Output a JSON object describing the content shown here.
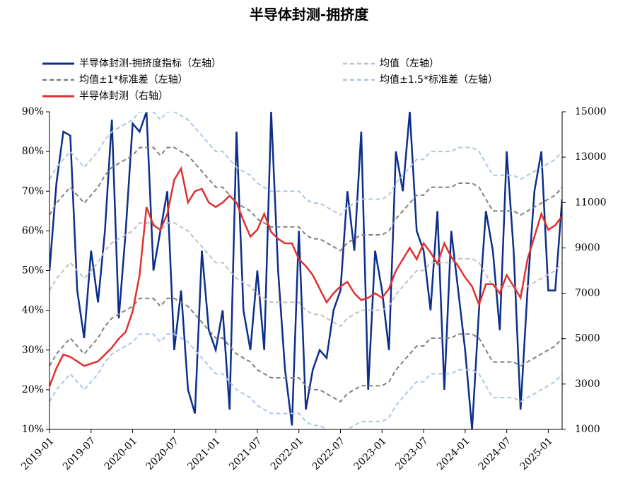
{
  "chart_data": {
    "type": "line",
    "title": "半导体封测-拥挤度",
    "x": [
      "2019-01",
      "2019-02",
      "2019-03",
      "2019-04",
      "2019-05",
      "2019-06",
      "2019-07",
      "2019-08",
      "2019-09",
      "2019-10",
      "2019-11",
      "2019-12",
      "2020-01",
      "2020-02",
      "2020-03",
      "2020-04",
      "2020-05",
      "2020-06",
      "2020-07",
      "2020-08",
      "2020-09",
      "2020-10",
      "2020-11",
      "2020-12",
      "2021-01",
      "2021-02",
      "2021-03",
      "2021-04",
      "2021-05",
      "2021-06",
      "2021-07",
      "2021-08",
      "2021-09",
      "2021-10",
      "2021-11",
      "2021-12",
      "2022-01",
      "2022-02",
      "2022-03",
      "2022-04",
      "2022-05",
      "2022-06",
      "2022-07",
      "2022-08",
      "2022-09",
      "2022-10",
      "2022-11",
      "2022-12",
      "2023-01",
      "2023-02",
      "2023-03",
      "2023-04",
      "2023-05",
      "2023-06",
      "2023-07",
      "2023-08",
      "2023-09",
      "2023-10",
      "2023-11",
      "2023-12",
      "2024-01",
      "2024-02",
      "2024-03",
      "2024-04",
      "2024-05",
      "2024-06",
      "2024-07",
      "2024-08",
      "2024-09",
      "2024-10",
      "2024-11",
      "2024-12",
      "2025-01",
      "2025-02",
      "2025-03"
    ],
    "xticks": [
      "2019-01",
      "2019-07",
      "2020-01",
      "2020-07",
      "2021-01",
      "2021-07",
      "2022-01",
      "2022-07",
      "2023-01",
      "2023-07",
      "2024-01",
      "2024-07",
      "2025-01"
    ],
    "ylim": [
      10,
      90
    ],
    "yticks": [
      {
        "value": 10,
        "label": "10%"
      },
      {
        "value": 20,
        "label": "20%"
      },
      {
        "value": 30,
        "label": "30%"
      },
      {
        "value": 40,
        "label": "40%"
      },
      {
        "value": 50,
        "label": "50%"
      },
      {
        "value": 60,
        "label": "60%"
      },
      {
        "value": 70,
        "label": "70%"
      },
      {
        "value": 80,
        "label": "80%"
      },
      {
        "value": 90,
        "label": "90%"
      }
    ],
    "y2lim": [
      1000,
      15000
    ],
    "y2ticks": [
      1000,
      3000,
      5000,
      7000,
      9000,
      11000,
      13000,
      15000
    ],
    "series": [
      {
        "name": "半导体封测-拥挤度指标（左轴）",
        "color": "#0d2f8a",
        "dash": false,
        "values": [
          50,
          72,
          85,
          84,
          45,
          33,
          55,
          42,
          60,
          88,
          38,
          60,
          87,
          85,
          90,
          50,
          60,
          70,
          30,
          45,
          20,
          14,
          55,
          35,
          30,
          40,
          15,
          85,
          40,
          30,
          50,
          30,
          90,
          50,
          25,
          11,
          60,
          15,
          25,
          30,
          28,
          40,
          45,
          70,
          55,
          85,
          20,
          55,
          45,
          30,
          80,
          70,
          90,
          60,
          55,
          40,
          65,
          20,
          60,
          45,
          30,
          10,
          40,
          65,
          55,
          35,
          80,
          55,
          15,
          45,
          70,
          80,
          45,
          45,
          68
        ]
      },
      {
        "name": "均值（左轴）",
        "color": "#c0c0c0",
        "dash": true,
        "values": [
          45,
          48,
          50,
          52,
          50,
          48,
          50,
          52,
          55,
          57,
          58,
          59,
          60,
          62,
          62,
          62,
          60,
          62,
          62,
          61,
          60,
          58,
          56,
          54,
          52,
          52,
          50,
          48,
          47,
          46,
          44,
          43,
          42,
          42,
          42,
          42,
          42,
          40,
          39,
          39,
          38,
          37,
          36,
          38,
          39,
          40,
          40,
          40,
          40,
          41,
          44,
          46,
          48,
          50,
          50,
          52,
          52,
          52,
          52,
          53,
          53,
          53,
          52,
          49,
          46,
          46,
          46,
          46,
          45,
          46,
          47,
          48,
          49,
          50,
          52
        ]
      },
      {
        "name": "均值±1*标准差（左轴）",
        "color": "#808080",
        "dash": true,
        "values": [
          64,
          67,
          69,
          71,
          69,
          67,
          69,
          71,
          74,
          76,
          77,
          78,
          79,
          81,
          81,
          81,
          79,
          81,
          81,
          80,
          79,
          77,
          75,
          73,
          71,
          71,
          69,
          67,
          66,
          65,
          63,
          62,
          61,
          61,
          61,
          61,
          61,
          59,
          58,
          58,
          57,
          56,
          55,
          57,
          58,
          59,
          59,
          59,
          59,
          60,
          63,
          65,
          67,
          69,
          69,
          71,
          71,
          71,
          71,
          72,
          72,
          72,
          71,
          68,
          65,
          65,
          65,
          65,
          64,
          65,
          66,
          67,
          68,
          69,
          71
        ]
      },
      {
        "name": "均值±1.5*标准差（左轴）",
        "color": "#aec6e8",
        "dash": true,
        "values": [
          73,
          76,
          78,
          80,
          78,
          76,
          78,
          80,
          83,
          85,
          86,
          87,
          88,
          90,
          90,
          90,
          88,
          90,
          90,
          89,
          88,
          86,
          84,
          82,
          80,
          80,
          78,
          76,
          75,
          74,
          72,
          71,
          70,
          70,
          70,
          70,
          70,
          68,
          67,
          67,
          66,
          65,
          64,
          66,
          67,
          68,
          68,
          68,
          68,
          69,
          72,
          74,
          76,
          78,
          78,
          80,
          80,
          80,
          80,
          81,
          81,
          81,
          80,
          77,
          74,
          74,
          74,
          74,
          73,
          74,
          75,
          76,
          77,
          78,
          80
        ]
      },
      {
        "name": "半导体封测（右轴）",
        "color": "#e03030",
        "dash": false,
        "axis": "y2",
        "values": [
          2900,
          3700,
          4300,
          4200,
          4000,
          3800,
          3900,
          4000,
          4300,
          4600,
          5000,
          5300,
          6200,
          7800,
          10800,
          10000,
          9800,
          10500,
          12000,
          12500,
          11000,
          11500,
          11600,
          11000,
          10800,
          11000,
          11300,
          11000,
          10200,
          9500,
          9800,
          10500,
          9700,
          9400,
          9200,
          9200,
          8500,
          8200,
          7800,
          7200,
          6600,
          7000,
          7300,
          7500,
          7000,
          6700,
          6800,
          7000,
          6800,
          7200,
          8000,
          8500,
          9000,
          8500,
          9200,
          8800,
          8300,
          9200,
          8600,
          8200,
          7700,
          7300,
          6500,
          7400,
          7400,
          7000,
          7800,
          7300,
          6800,
          8500,
          9500,
          10500,
          9800,
          10000,
          10400
        ]
      },
      {
        "name": "均值±1*标准差（左轴）",
        "color": "#808080",
        "dash": true,
        "values": [
          26,
          29,
          31,
          33,
          31,
          29,
          31,
          33,
          36,
          38,
          39,
          40,
          41,
          43,
          43,
          43,
          41,
          43,
          43,
          42,
          41,
          39,
          37,
          35,
          33,
          33,
          31,
          29,
          28,
          27,
          25,
          24,
          23,
          23,
          23,
          23,
          23,
          21,
          20,
          20,
          19,
          18,
          17,
          19,
          20,
          21,
          21,
          21,
          21,
          22,
          25,
          27,
          29,
          31,
          31,
          33,
          33,
          33,
          33,
          34,
          34,
          34,
          33,
          30,
          27,
          27,
          27,
          27,
          26,
          27,
          28,
          29,
          30,
          31,
          33
        ]
      },
      {
        "name": "均值±1.5*标准差（左轴）",
        "color": "#aec6e8",
        "dash": true,
        "values": [
          17,
          20,
          22,
          24,
          22,
          20,
          22,
          24,
          27,
          29,
          30,
          31,
          32,
          34,
          34,
          34,
          32,
          34,
          34,
          33,
          32,
          30,
          28,
          26,
          24,
          24,
          22,
          20,
          19,
          18,
          16,
          15,
          14,
          14,
          14,
          14,
          14,
          12,
          11,
          11,
          10,
          9,
          8,
          10,
          11,
          12,
          12,
          12,
          12,
          13,
          16,
          18,
          20,
          22,
          22,
          24,
          24,
          24,
          24,
          25,
          25,
          25,
          24,
          21,
          18,
          18,
          18,
          18,
          17,
          18,
          19,
          20,
          21,
          22,
          24
        ]
      }
    ]
  }
}
